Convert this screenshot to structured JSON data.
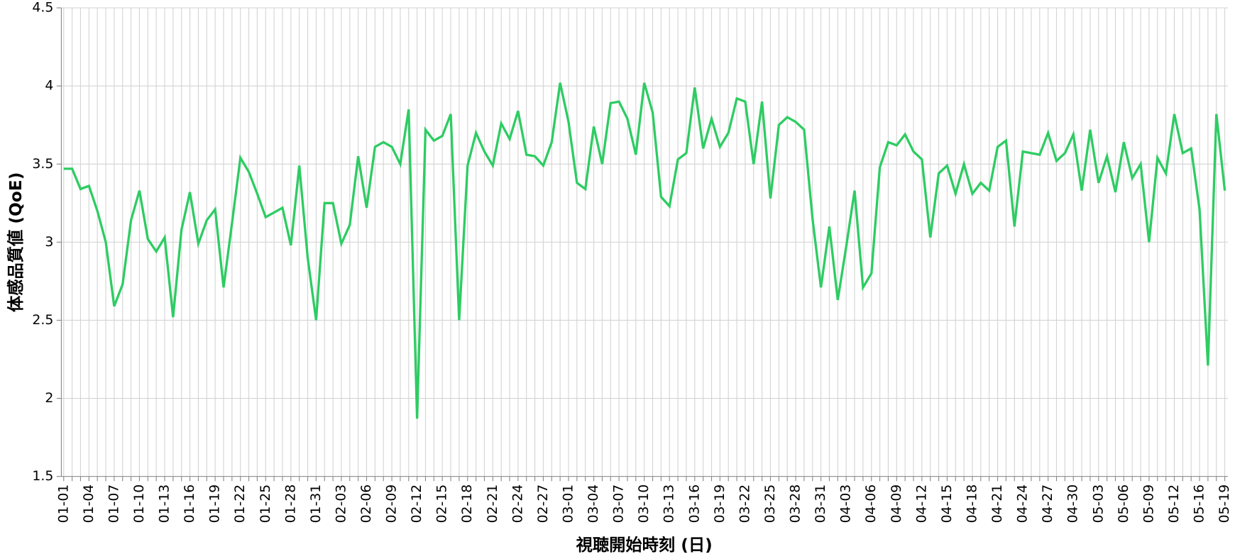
{
  "chart_data": {
    "type": "line",
    "x_label": "視聴開始時刻 (日)",
    "y_label": "体感品質値 (QoE)",
    "categories": [
      "01-01",
      null,
      null,
      "01-04",
      null,
      null,
      "01-07",
      null,
      null,
      "01-10",
      null,
      null,
      "01-13",
      null,
      null,
      "01-16",
      null,
      null,
      "01-19",
      null,
      null,
      "01-22",
      null,
      null,
      "01-25",
      null,
      null,
      "01-28",
      null,
      null,
      "01-31",
      null,
      null,
      "02-03",
      null,
      null,
      "02-06",
      null,
      null,
      "02-09",
      null,
      null,
      "02-12",
      null,
      null,
      "02-15",
      null,
      null,
      "02-18",
      null,
      null,
      "02-21",
      null,
      null,
      "02-24",
      null,
      null,
      "02-27",
      null,
      null,
      "03-01",
      null,
      null,
      "03-04",
      null,
      null,
      "03-07",
      null,
      null,
      "03-10",
      null,
      null,
      "03-13",
      null,
      null,
      "03-16",
      null,
      null,
      "03-19",
      null,
      null,
      "03-22",
      null,
      null,
      "03-25",
      null,
      null,
      "03-28",
      null,
      null,
      "03-31",
      null,
      null,
      "04-03",
      null,
      null,
      "04-06",
      null,
      null,
      "04-09",
      null,
      null,
      "04-12",
      null,
      null,
      "04-15",
      null,
      null,
      "04-18",
      null,
      null,
      "04-21",
      null,
      null,
      "04-24",
      null,
      null,
      "04-27",
      null,
      null,
      "04-30",
      null,
      null,
      "05-03",
      null,
      null,
      "05-06",
      null,
      null,
      "05-09",
      null,
      null,
      "05-12",
      null,
      null,
      "05-16",
      null,
      null,
      "05-19"
    ],
    "series": [
      {
        "color": "#2ecc63",
        "values": [
          3.47,
          3.47,
          3.34,
          3.36,
          3.2,
          3.0,
          2.59,
          2.73,
          3.14,
          3.33,
          3.02,
          2.94,
          3.03,
          2.52,
          3.08,
          3.32,
          2.99,
          3.14,
          3.21,
          2.71,
          3.12,
          3.54,
          3.45,
          3.31,
          3.16,
          3.19,
          3.22,
          2.98,
          3.49,
          2.9,
          2.5,
          3.25,
          3.25,
          2.99,
          3.11,
          3.55,
          3.22,
          3.61,
          3.64,
          3.61,
          3.5,
          3.85,
          1.87,
          3.72,
          3.65,
          3.68,
          3.82,
          2.5,
          3.49,
          3.7,
          3.58,
          3.49,
          3.76,
          3.66,
          3.84,
          3.56,
          3.55,
          3.49,
          3.64,
          4.02,
          3.77,
          3.38,
          3.34,
          3.74,
          3.5,
          3.89,
          3.9,
          3.79,
          3.56,
          4.02,
          3.83,
          3.29,
          3.23,
          3.53,
          3.57,
          3.99,
          3.6,
          3.79,
          3.61,
          3.7,
          3.92,
          3.9,
          3.5,
          3.9,
          3.28,
          3.75,
          3.8,
          3.77,
          3.72,
          3.15,
          2.71,
          3.1,
          2.63,
          2.97,
          3.33,
          2.71,
          2.8,
          3.48,
          3.64,
          3.62,
          3.69,
          3.58,
          3.53,
          3.03,
          3.44,
          3.49,
          3.31,
          3.5,
          3.31,
          3.38,
          3.33,
          3.61,
          3.65,
          3.1,
          3.58,
          3.57,
          3.56,
          3.7,
          3.52,
          3.57,
          3.69,
          3.33,
          3.72,
          3.38,
          3.55,
          3.32,
          3.64,
          3.41,
          3.5,
          3.0,
          3.54,
          3.44,
          3.82,
          3.57,
          3.6,
          3.21,
          2.21,
          3.82,
          3.33
        ]
      }
    ],
    "ylim": [
      1.5,
      4.5
    ],
    "yticks": [
      1.5,
      2,
      2.5,
      3,
      3.5,
      4,
      4.5
    ],
    "grid": true
  }
}
